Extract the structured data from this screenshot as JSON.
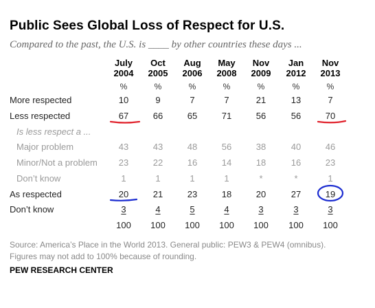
{
  "chart_data": {
    "type": "table",
    "title": "Public Sees Global Loss of Respect for U.S.",
    "subtitle": "Compared to the past, the U.S. is ____ by other countries these days ...",
    "columns": [
      {
        "month": "July",
        "year": "2004"
      },
      {
        "month": "Oct",
        "year": "2005"
      },
      {
        "month": "Aug",
        "year": "2006"
      },
      {
        "month": "May",
        "year": "2008"
      },
      {
        "month": "Nov",
        "year": "2009"
      },
      {
        "month": "Jan",
        "year": "2012"
      },
      {
        "month": "Nov",
        "year": "2013"
      }
    ],
    "unit_label": "%",
    "rows": [
      {
        "label": "More respected",
        "values": [
          "10",
          "9",
          "7",
          "7",
          "21",
          "13",
          "7"
        ],
        "style": "main"
      },
      {
        "label": "Less respected",
        "values": [
          "67",
          "66",
          "65",
          "71",
          "56",
          "56",
          "70"
        ],
        "style": "main"
      },
      {
        "label": "Is less respect a ...",
        "values": [],
        "style": "sub-heading"
      },
      {
        "label": "Major problem",
        "values": [
          "43",
          "43",
          "48",
          "56",
          "38",
          "40",
          "46"
        ],
        "style": "sub"
      },
      {
        "label": "Minor/Not a problem",
        "values": [
          "23",
          "22",
          "16",
          "14",
          "18",
          "16",
          "23"
        ],
        "style": "sub"
      },
      {
        "label": "Don’t know",
        "values": [
          "1",
          "1",
          "1",
          "1",
          "*",
          "*",
          "1"
        ],
        "style": "sub"
      },
      {
        "label": "As respected",
        "values": [
          "20",
          "21",
          "23",
          "18",
          "20",
          "27",
          "19"
        ],
        "style": "main"
      },
      {
        "label": "Don’t know",
        "values": [
          "3",
          "4",
          "5",
          "4",
          "3",
          "3",
          "3"
        ],
        "style": "underline"
      },
      {
        "label": "",
        "values": [
          "100",
          "100",
          "100",
          "100",
          "100",
          "100",
          "100"
        ],
        "style": "main"
      }
    ],
    "annotations": {
      "red_underlines": [
        {
          "row": 1,
          "col": 0
        },
        {
          "row": 1,
          "col": 6
        }
      ],
      "blue_underline": {
        "row": 6,
        "col": 0
      },
      "blue_circle": {
        "row": 6,
        "col": 6
      }
    },
    "colors": {
      "annotation_red": "#e0202a",
      "annotation_blue": "#1a2bd0",
      "sub_text": "#9a9a9a"
    }
  },
  "source": {
    "line1": "Source: America’s Place in the World 2013. General public: PEW3 & PEW4 (omnibus).",
    "line2": "Figures may not add to 100% because of rounding."
  },
  "organization": "PEW RESEARCH CENTER"
}
